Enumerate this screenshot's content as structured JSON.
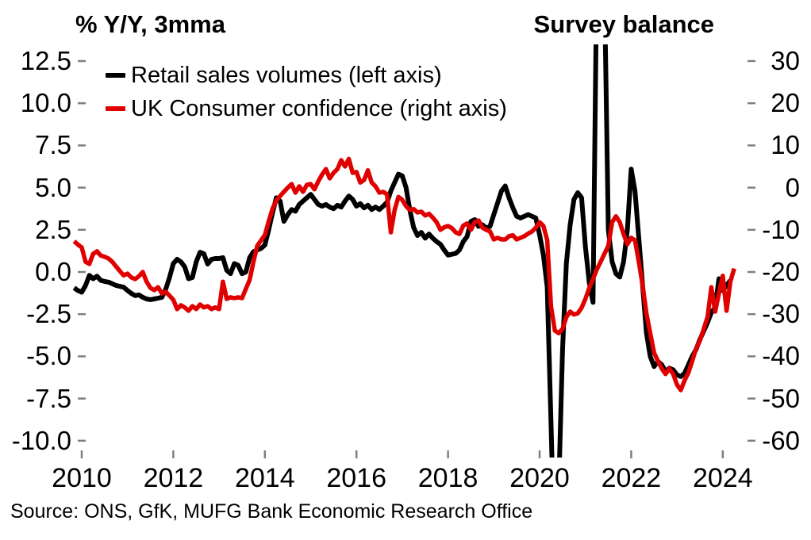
{
  "header": {
    "left_axis_title": "% Y/Y, 3mma",
    "right_axis_title": "Survey balance"
  },
  "legend": {
    "items": [
      {
        "label": "Retail sales volumes (left axis)",
        "color": "#000000"
      },
      {
        "label": "UK Consumer confidence (right axis)",
        "color": "#e00000"
      }
    ]
  },
  "footer": {
    "source_note": "Source: ONS, GfK, MUFG Bank Economic Research Office"
  },
  "chart_data": {
    "type": "line",
    "title": "",
    "grid": false,
    "legend_position": "top-left-inside",
    "x_axis": {
      "tick_labels": [
        "2010",
        "2012",
        "2014",
        "2016",
        "2018",
        "2020",
        "2022",
        "2024"
      ],
      "range_shown": [
        2009.75,
        2024.6
      ]
    },
    "left_axis": {
      "label": "% Y/Y, 3mma",
      "ticks": [
        12.5,
        10.0,
        7.5,
        5.0,
        2.5,
        0.0,
        -2.5,
        -5.0,
        -7.5,
        -10.0
      ],
      "range_shown": [
        -10.9,
        13.4
      ]
    },
    "right_axis": {
      "label": "Survey balance",
      "ticks": [
        30,
        20,
        10,
        0,
        -10,
        -20,
        -30,
        -40,
        -50,
        -60
      ],
      "range_shown": [
        -63.6,
        33.6
      ]
    },
    "series": [
      {
        "name": "Retail sales volumes",
        "axis": "left",
        "color": "#000000",
        "stroke_width": 6,
        "unit": "% y/y 3mma",
        "start_year": 2009,
        "start_month": 11,
        "frequency": "monthly",
        "clipped_at_plot_edges": true,
        "monthly_values": [
          -0.94,
          -1.1,
          -1.2,
          -0.8,
          -0.2,
          -0.4,
          -0.25,
          -0.5,
          -0.56,
          -0.6,
          -0.7,
          -0.8,
          -0.85,
          -0.9,
          -1.1,
          -1.27,
          -1.4,
          -1.36,
          -1.5,
          -1.6,
          -1.64,
          -1.6,
          -1.55,
          -1.5,
          -1.03,
          -0.33,
          0.5,
          0.75,
          0.6,
          0.3,
          -0.4,
          -0.33,
          0.6,
          1.17,
          1.08,
          0.47,
          0.75,
          0.8,
          0.8,
          0.85,
          0.1,
          -0.1,
          0.5,
          0.4,
          -0.1,
          0.0,
          0.85,
          1.2,
          1.3,
          1.4,
          1.6,
          2.5,
          3.5,
          4.4,
          4.2,
          3.0,
          3.4,
          3.7,
          3.6,
          4.0,
          4.2,
          4.4,
          4.6,
          4.3,
          4.0,
          3.9,
          4.0,
          3.85,
          3.75,
          3.95,
          3.85,
          4.2,
          4.5,
          4.3,
          3.9,
          4.05,
          3.8,
          3.95,
          3.7,
          3.85,
          3.7,
          3.9,
          4.13,
          4.8,
          5.3,
          5.8,
          5.7,
          5.0,
          3.66,
          2.63,
          2.16,
          2.35,
          2.0,
          2.25,
          2.0,
          1.8,
          1.64,
          1.3,
          1.0,
          1.05,
          1.1,
          1.3,
          1.8,
          2.1,
          3.0,
          3.1,
          2.7,
          2.8,
          2.6,
          2.7,
          3.4,
          4.1,
          4.8,
          5.1,
          4.4,
          3.8,
          3.3,
          3.2,
          3.3,
          3.4,
          3.3,
          3.2,
          2.2,
          1.0,
          -0.9,
          -9.0,
          -17.5,
          -13.0,
          -4.6,
          0.5,
          2.8,
          4.3,
          4.7,
          4.4,
          1.5,
          -0.6,
          -1.8,
          18.0,
          23.0,
          17.0,
          2.5,
          0.6,
          -0.1,
          -0.3,
          0.6,
          2.5,
          6.1,
          4.8,
          2.0,
          -0.8,
          -3.6,
          -5.0,
          -5.6,
          -5.3,
          -5.5,
          -5.9,
          -5.7,
          -5.8,
          -6.1,
          -6.2,
          -6.0,
          -5.5,
          -5.0,
          -4.6,
          -4.0,
          -3.5,
          -3.0,
          -2.4,
          -2.1,
          -0.4,
          -1.1,
          -0.8,
          -0.5
        ]
      },
      {
        "name": "UK Consumer confidence",
        "axis": "right",
        "color": "#e00000",
        "stroke_width": 5.5,
        "unit": "survey balance",
        "start_year": 2009,
        "start_month": 11,
        "frequency": "monthly",
        "clipped_at_plot_edges": false,
        "monthly_values": [
          -12.7,
          -13.5,
          -14.2,
          -17.6,
          -18.1,
          -15.7,
          -15.1,
          -16.1,
          -16.4,
          -16.8,
          -17.6,
          -18.7,
          -19.8,
          -20.8,
          -20.4,
          -21.3,
          -21.7,
          -21.0,
          -20.0,
          -22.3,
          -23.8,
          -24.3,
          -23.6,
          -25.1,
          -24.7,
          -25.6,
          -26.6,
          -28.8,
          -27.9,
          -28.4,
          -29.2,
          -28.1,
          -28.8,
          -27.7,
          -28.4,
          -28.1,
          -28.8,
          -28.4,
          -28.8,
          -22.3,
          -26.4,
          -26.0,
          -26.2,
          -26.0,
          -26.2,
          -24.0,
          -21.9,
          -17.6,
          -13.8,
          -12.5,
          -11.2,
          -8.0,
          -5.0,
          -3.1,
          -2.0,
          -1.0,
          0.0,
          0.85,
          -1.2,
          0.3,
          -1.0,
          0.65,
          0.85,
          -0.4,
          1.5,
          3.1,
          4.4,
          2.2,
          3.5,
          4.4,
          6.5,
          5.0,
          6.8,
          3.5,
          3.7,
          1.2,
          1.8,
          4.1,
          1.2,
          0.3,
          -1.2,
          -1.0,
          -1.6,
          -10.6,
          -5.3,
          -2.2,
          -2.9,
          -4.4,
          -5.3,
          -5.1,
          -5.9,
          -5.7,
          -6.6,
          -6.2,
          -7.1,
          -8.2,
          -10.0,
          -9.4,
          -9.1,
          -9.6,
          -10.6,
          -11.0,
          -9.0,
          -8.5,
          -10.0,
          -8.2,
          -7.8,
          -9.5,
          -10.0,
          -10.4,
          -12.3,
          -11.9,
          -12.3,
          -12.3,
          -11.5,
          -11.3,
          -12.3,
          -11.9,
          -11.5,
          -10.9,
          -10.4,
          -9.5,
          -8.2,
          -9.1,
          -12.5,
          -28.2,
          -33.9,
          -34.5,
          -33.5,
          -30.7,
          -29.4,
          -30.1,
          -29.8,
          -28.5,
          -26.4,
          -23.8,
          -21.7,
          -19.4,
          -17.6,
          -15.7,
          -13.8,
          -8.2,
          -6.8,
          -8.2,
          -11.0,
          -13.4,
          -11.9,
          -12.5,
          -17.6,
          -23.2,
          -29.8,
          -34.5,
          -39.2,
          -41.1,
          -42.9,
          -44.2,
          -42.9,
          -44.2,
          -46.7,
          -48.0,
          -45.7,
          -43.9,
          -41.1,
          -38.2,
          -36.3,
          -33.5,
          -30.7,
          -23.6,
          -29.4,
          -25.1,
          -20.9,
          -29.2,
          -22.3,
          -19.2
        ]
      }
    ]
  }
}
